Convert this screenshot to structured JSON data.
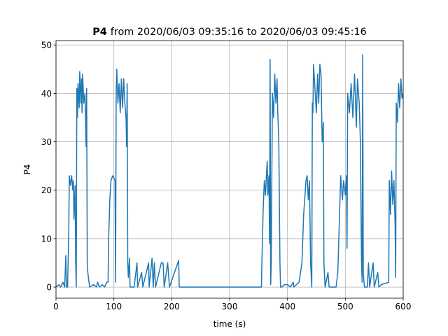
{
  "chart_data": {
    "type": "line",
    "title_bold": "P4",
    "title": "from 2020/06/03 09:35:16 to 2020/06/03 09:45:16",
    "x_label": "time (s)",
    "y_label": "P4",
    "xlim": [
      0,
      600
    ],
    "ylim": [
      -2.3,
      50.9
    ],
    "xticks": [
      0,
      100,
      200,
      300,
      400,
      500,
      600
    ],
    "yticks": [
      0,
      10,
      20,
      30,
      40,
      50
    ],
    "grid": true,
    "series": [
      {
        "color": "#1f77b4",
        "x": [
          0,
          5,
          8,
          12,
          15,
          17,
          18,
          20,
          22,
          23,
          25,
          27,
          29,
          30,
          31,
          33,
          34,
          35,
          36,
          37,
          38,
          40,
          41,
          43,
          44,
          45,
          46,
          48,
          50,
          51,
          52,
          53,
          54,
          55,
          57,
          58,
          65,
          70,
          72,
          75,
          80,
          84,
          88,
          90,
          91,
          93,
          95,
          98,
          100,
          102,
          103,
          104,
          105,
          107,
          109,
          111,
          113,
          115,
          117,
          119,
          121,
          122,
          123,
          124,
          125,
          127,
          128,
          135,
          140,
          141,
          148,
          150,
          160,
          161,
          166,
          168,
          170,
          172,
          182,
          185,
          187,
          193,
          196,
          212,
          213,
          355,
          356,
          358,
          360,
          362,
          364,
          365,
          366,
          368,
          369,
          370,
          371,
          372,
          374,
          376,
          378,
          380,
          382,
          383,
          385,
          387,
          388,
          390,
          395,
          400,
          405,
          410,
          411,
          420,
          425,
          428,
          432,
          434,
          436,
          438,
          440,
          442,
          443,
          444,
          445,
          447,
          450,
          452,
          454,
          456,
          458,
          460,
          462,
          463,
          465,
          470,
          472,
          480,
          484,
          487,
          490,
          492,
          495,
          497,
          500,
          502,
          503,
          504,
          507,
          510,
          513,
          516,
          519,
          521,
          524,
          526,
          528,
          529,
          530,
          531,
          533,
          538,
          540,
          542,
          548,
          550,
          556,
          558,
          562,
          575,
          576,
          578,
          580,
          582,
          584,
          586,
          587,
          588,
          590,
          592,
          594,
          596,
          598,
          600
        ],
        "values": [
          0,
          0.5,
          0,
          1,
          0,
          6.5,
          0,
          0,
          11,
          23,
          21,
          23,
          20,
          22,
          14,
          21,
          5,
          0,
          41,
          35,
          42,
          37,
          44.5,
          38,
          43,
          36,
          44,
          38,
          40,
          35,
          29,
          41,
          5,
          3,
          1,
          0,
          0.5,
          0,
          1,
          0,
          0.5,
          0,
          1,
          1,
          10,
          18,
          22,
          23,
          22.5,
          22,
          1,
          40,
          45,
          38,
          42,
          36,
          43,
          37,
          43,
          38,
          35,
          29,
          42,
          5,
          2,
          6,
          0,
          0,
          5,
          0,
          3,
          0,
          5,
          0,
          6,
          0,
          5,
          0,
          5,
          5,
          0,
          5,
          0,
          5.5,
          0,
          0,
          6,
          16,
          22,
          19,
          24,
          26,
          19,
          23,
          9,
          47,
          0.5,
          5,
          40,
          35,
          44,
          38,
          43,
          37,
          30,
          5,
          0,
          0,
          0.5,
          0.5,
          0,
          1,
          0,
          1,
          5,
          15,
          22,
          23,
          18,
          22,
          5,
          0,
          38,
          36,
          46,
          42,
          36,
          44,
          38,
          46,
          44,
          30,
          34,
          5,
          0,
          3,
          0,
          0,
          0,
          3,
          15,
          23,
          18,
          22,
          19,
          23,
          8,
          40,
          36,
          42,
          35,
          44,
          33,
          43,
          38,
          30,
          5,
          1,
          48,
          3,
          0,
          0,
          5,
          0,
          5,
          0,
          3,
          0,
          0.5,
          1,
          22,
          15,
          24,
          17,
          22,
          13,
          2,
          38,
          34,
          42,
          37,
          43,
          39,
          40
        ]
      }
    ]
  }
}
